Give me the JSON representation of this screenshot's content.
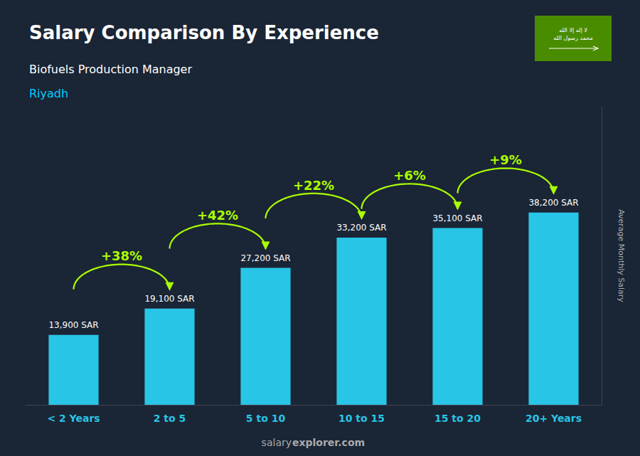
{
  "chart_data": {
    "type": "bar",
    "title": "Salary Comparison By Experience",
    "subtitle": "Biofuels Production Manager",
    "ylabel": "Average Monthly Salary",
    "categories": [
      "< 2 Years",
      "2 to 5",
      "5 to 10",
      "10 to 15",
      "15 to 20",
      "20+ Years"
    ],
    "values": [
      13900,
      19100,
      27200,
      33200,
      35100,
      38200
    ],
    "value_labels": [
      "13,900 SAR",
      "19,100 SAR",
      "27,200 SAR",
      "33,200 SAR",
      "35,100 SAR",
      "38,200 SAR"
    ],
    "data_labels": true,
    "color": "#29c5e6",
    "ylim": [
      0,
      59210
    ],
    "tick_labels": "x",
    "grid": false,
    "annotations": [
      "Riyadh",
      "+38%",
      "+42%",
      "+22%",
      "+6%",
      "+9%",
      "salary",
      "explorer.com",
      "لا إله إلا الله",
      "محمد رسول الله"
    ]
  }
}
